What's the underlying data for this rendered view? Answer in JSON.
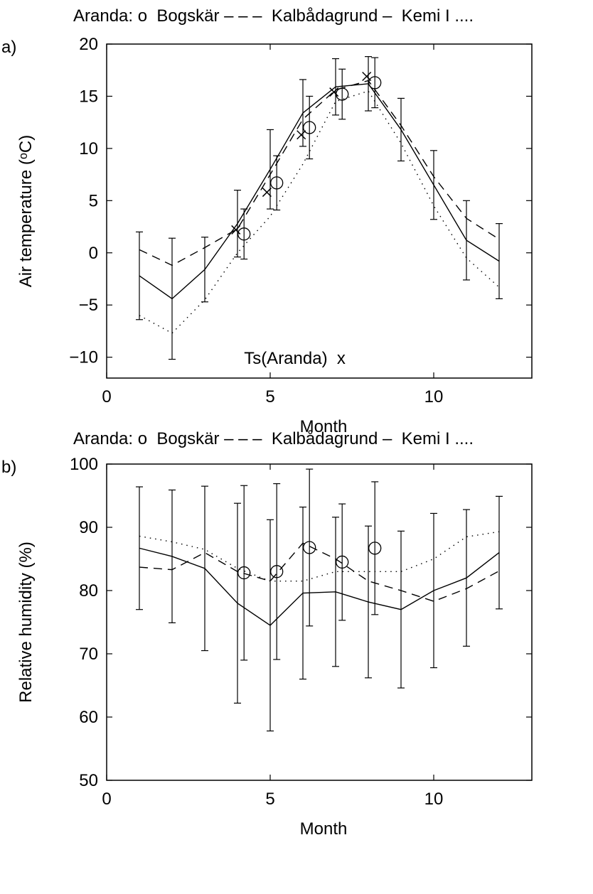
{
  "chart_data": [
    {
      "type": "line",
      "panel_label": "a)",
      "title": "Aranda: o  Bogskär – – –  Kalbådagrund –  Kemi I ....",
      "xlabel": "Month",
      "ylabel": "Air temperature (ᵒC)",
      "annotation": "Ts(Aranda)  x",
      "xlim": [
        0,
        13
      ],
      "xticks": [
        0,
        5,
        10
      ],
      "ylim": [
        -12,
        20
      ],
      "yticks": [
        {
          "value": -10,
          "label": "−10"
        },
        {
          "value": -5,
          "label": "−5"
        },
        0,
        5,
        10,
        15,
        20
      ],
      "series": [
        {
          "style": "solid",
          "color": "#000000",
          "x": [
            1,
            2,
            3,
            4,
            5,
            6,
            7,
            8,
            9,
            10,
            11,
            12
          ],
          "values": [
            -2.2,
            -4.4,
            -1.6,
            2.8,
            8.0,
            13.4,
            15.9,
            16.2,
            11.8,
            6.5,
            1.2,
            -0.8
          ],
          "errors": [
            4.2,
            5.8,
            3.1,
            3.2,
            3.8,
            3.2,
            2.7,
            2.6,
            3.0,
            3.3,
            3.8,
            3.6
          ]
        },
        {
          "style": "dashed",
          "color": "#000000",
          "x": [
            1,
            2,
            3,
            4,
            5,
            6,
            7,
            8,
            9,
            10,
            11,
            12
          ],
          "values": [
            0.3,
            -1.2,
            0.5,
            2.3,
            7.5,
            12.8,
            15.6,
            16.5,
            12.2,
            7.3,
            3.3,
            1.3
          ]
        },
        {
          "style": "dotted",
          "color": "#000000",
          "x": [
            1,
            2,
            3,
            4,
            5,
            6,
            7,
            8,
            9,
            10,
            11,
            12
          ],
          "values": [
            -6.0,
            -7.7,
            -4.5,
            0.0,
            3.5,
            8.5,
            14.5,
            15.5,
            10.5,
            4.5,
            -0.5,
            -3.3
          ]
        },
        {
          "style": "none",
          "marker": "o",
          "color": "#000000",
          "x": [
            4.2,
            5.2,
            6.2,
            7.2,
            8.2
          ],
          "values": [
            1.8,
            6.7,
            12.0,
            15.2,
            16.3
          ],
          "errors": [
            2.4,
            2.6,
            3.0,
            2.4,
            2.4
          ]
        },
        {
          "style": "none",
          "marker": "x",
          "color": "#000000",
          "x": [
            3.95,
            4.9,
            5.95,
            6.95,
            7.95
          ],
          "values": [
            2.2,
            5.8,
            11.3,
            15.4,
            16.9
          ]
        }
      ]
    },
    {
      "type": "line",
      "panel_label": "b)",
      "title": "Aranda: o  Bogskär – – –  Kalbådagrund –  Kemi I ....",
      "xlabel": "Month",
      "ylabel": "Relative humidity (%)",
      "xlim": [
        0,
        13
      ],
      "xticks": [
        0,
        5,
        10
      ],
      "ylim": [
        50,
        100
      ],
      "yticks": [
        50,
        60,
        70,
        80,
        90,
        100
      ],
      "series": [
        {
          "style": "solid",
          "color": "#000000",
          "x": [
            1,
            2,
            3,
            4,
            5,
            6,
            7,
            8,
            9,
            10,
            11,
            12
          ],
          "values": [
            86.7,
            85.4,
            83.5,
            78.0,
            74.5,
            79.6,
            79.8,
            78.2,
            77.0,
            80.0,
            82.0,
            86.0
          ],
          "errors": [
            9.7,
            10.5,
            13.0,
            15.8,
            16.7,
            13.6,
            11.8,
            12.0,
            12.4,
            12.2,
            10.8,
            8.9
          ]
        },
        {
          "style": "dashed",
          "color": "#000000",
          "x": [
            1,
            2,
            3,
            4,
            5,
            6,
            7,
            8,
            9,
            10,
            11,
            12
          ],
          "values": [
            83.7,
            83.3,
            86.0,
            83.0,
            81.5,
            87.5,
            85.0,
            81.5,
            80.0,
            78.3,
            80.3,
            83.1
          ]
        },
        {
          "style": "dotted",
          "color": "#000000",
          "x": [
            1,
            2,
            3,
            4,
            5,
            6,
            7,
            8,
            9,
            10,
            11,
            12
          ],
          "values": [
            88.6,
            87.7,
            86.5,
            83.5,
            81.5,
            81.5,
            83.0,
            83.0,
            83.0,
            85.0,
            88.5,
            89.3
          ]
        },
        {
          "style": "none",
          "marker": "o",
          "color": "#000000",
          "x": [
            4.2,
            5.2,
            6.2,
            7.2,
            8.2
          ],
          "values": [
            82.8,
            83.0,
            86.8,
            84.5,
            86.7
          ],
          "errors": [
            13.8,
            13.9,
            12.4,
            9.2,
            10.5
          ]
        }
      ]
    }
  ]
}
